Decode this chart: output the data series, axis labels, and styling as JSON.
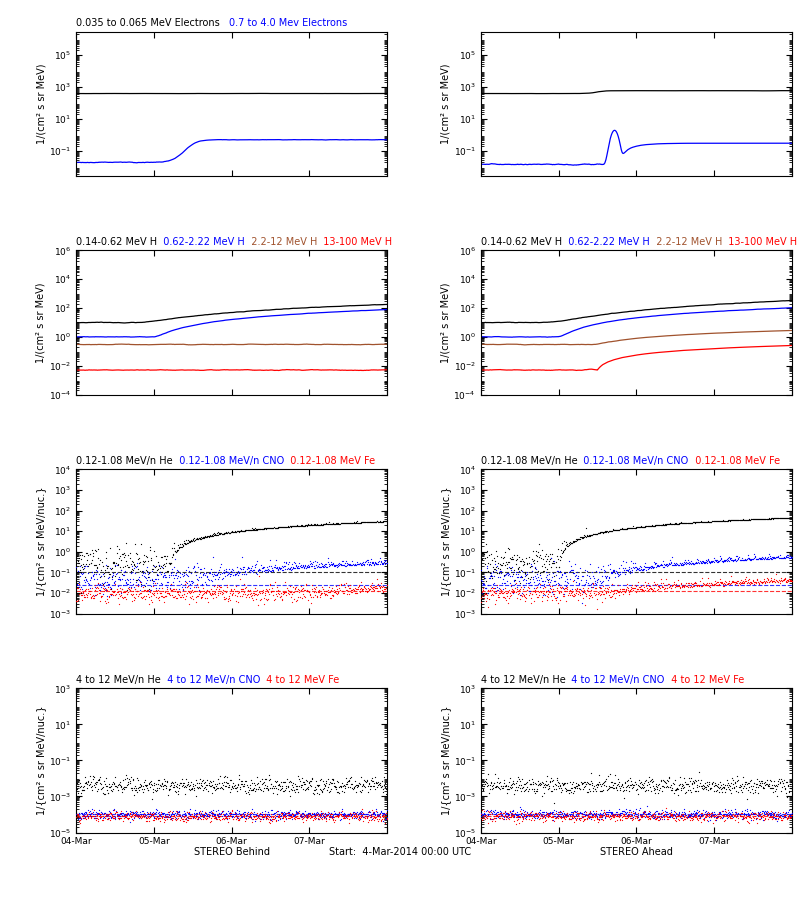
{
  "title_row1_left_black": "0.035 to 0.065 MeV Electrons",
  "title_row1_left_blue": "0.7 to 4.0 Mev Electrons",
  "title_row2_1": "0.14-0.62 MeV H",
  "title_row2_2": "0.62-2.22 MeV H",
  "title_row2_3": "2.2-12 MeV H",
  "title_row2_4": "13-100 MeV H",
  "title_row3_1": "0.12-1.08 MeV/n He",
  "title_row3_2": "0.12-1.08 MeV/n CNO",
  "title_row3_3": "0.12-1.08 MeV Fe",
  "title_row4_1": "4 to 12 MeV/n He",
  "title_row4_2": "4 to 12 MeV/n CNO",
  "title_row4_3": "4 to 12 MeV Fe",
  "xlabel_left": "STEREO Behind",
  "xlabel_right": "STEREO Ahead",
  "xlabel_center": "Start:  4-Mar-2014 00:00 UTC",
  "ylabel_e": "1/(cm² s sr MeV)",
  "ylabel_p": "1/(cm² s sr MeV)",
  "ylabel_h": "1/{cm² s sr MeV/nuc.}",
  "ylabel_h2": "1/{cm² s sr MeV/nuc.}",
  "date_labels": [
    "04-Mar",
    "05-Mar",
    "06-Mar",
    "07-Mar"
  ],
  "colors": {
    "black": "#000000",
    "blue": "#0000ff",
    "brown": "#a0522d",
    "red": "#ff0000"
  },
  "row1_ylim": [
    0.003,
    3000000.0
  ],
  "row2_ylim": [
    0.0001,
    1000000.0
  ],
  "row3_ylim": [
    0.001,
    10000.0
  ],
  "row4_ylim": [
    1e-05,
    1000.0
  ],
  "seed": 42
}
